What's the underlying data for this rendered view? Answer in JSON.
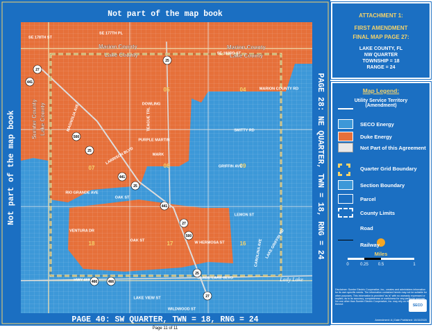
{
  "frame": {
    "top": "Not part of the map book",
    "left": "Not part of the map book",
    "right": "PAGE 28: NE QUARTER, TWN = 18, RNG = 24",
    "bottom": "PAGE 40: SW QUARTER, TWN = 18, RNG = 24"
  },
  "header": {
    "attachment": "ATTACHMENT 1:",
    "amendment": "FIRST AMENDMENT",
    "page": "FINAL MAP PAGE 27:",
    "county": "LAKE COUNTY, FL",
    "quarter": "NW QUARTER",
    "township": "TOWNSHIP = 18",
    "range": "RANGE = 24"
  },
  "legend": {
    "title": "Map Legend:",
    "subtitle_1": "Utility Service Territory",
    "subtitle_2": "(Amendment)",
    "items": [
      {
        "label": "SECO Energy",
        "color": "#3d98d8"
      },
      {
        "label": "Duke Energy",
        "color": "#e6703a"
      },
      {
        "label": "Not Part of this Agreement",
        "color": "#e8e8e8"
      },
      {
        "label": "Quarter Grid Boundary",
        "color": "#f5d36a"
      },
      {
        "label": "Section Boundary",
        "color": "#3d98d8"
      },
      {
        "label": "Parcel",
        "color": "#1b6fc2"
      },
      {
        "label": "County Limits",
        "color": "#1b6fc2"
      },
      {
        "label": "Road",
        "color": "#1b6fc2"
      },
      {
        "label": "Railway",
        "color": "#1b6fc2"
      }
    ],
    "scale": {
      "title": "Miles",
      "ticks": [
        "0",
        "0.25",
        "0.5",
        "1"
      ]
    },
    "disclaimer": "Disclaimer: Sumter Electric Cooperative, Inc., creates and administers information for its own specific needs. The information contained herein may not be suitable for other purposes. This information is provided \"as is\" with no warranty expressed or implied, as to its accuracy, completeness or usefulness for any particular purpose. No one other than Sumter Electric Cooperative, Inc. may rely on the accuracy thereof.",
    "logo": "SECO",
    "amendment_note": "Amendment: A | Date Published: 10/15/2020"
  },
  "map": {
    "sections": [
      "05",
      "04",
      "07",
      "08",
      "09",
      "18",
      "17",
      "16"
    ],
    "counties": [
      "Marion County",
      "Lake County",
      "Marion County",
      "Lake County",
      "Sumter County",
      "Lake County"
    ],
    "streets": [
      "SE 177TH PL",
      "SE 178TH ST",
      "SE 183RD ST",
      "MARION COUNTY RD",
      "DOWLING",
      "PURPLE MARTIN",
      "SMITTY RD",
      "GRIFFIN AVE",
      "LARRISON BLVD",
      "MAGNOLIA AVE",
      "TEAGUE TRL",
      "MARK",
      "RIO GRANDE AVE",
      "OAK ST",
      "VENTURA DR",
      "OAK ST",
      "W HERMOSA ST",
      "LEMON ST",
      "CAROLINA AVE",
      "LAKE GRIFFIN RD",
      "HWY 466",
      "GLADE LAKE BLVD",
      "LAKE VIEW ST",
      "WILDWOOD ST"
    ],
    "shields": [
      "27",
      "441",
      "25",
      "500",
      "25",
      "441",
      "25",
      "441",
      "27",
      "500",
      "25",
      "466",
      "466",
      "27"
    ],
    "lake": "Lady Lake"
  },
  "footer": "Page 11 of 11"
}
